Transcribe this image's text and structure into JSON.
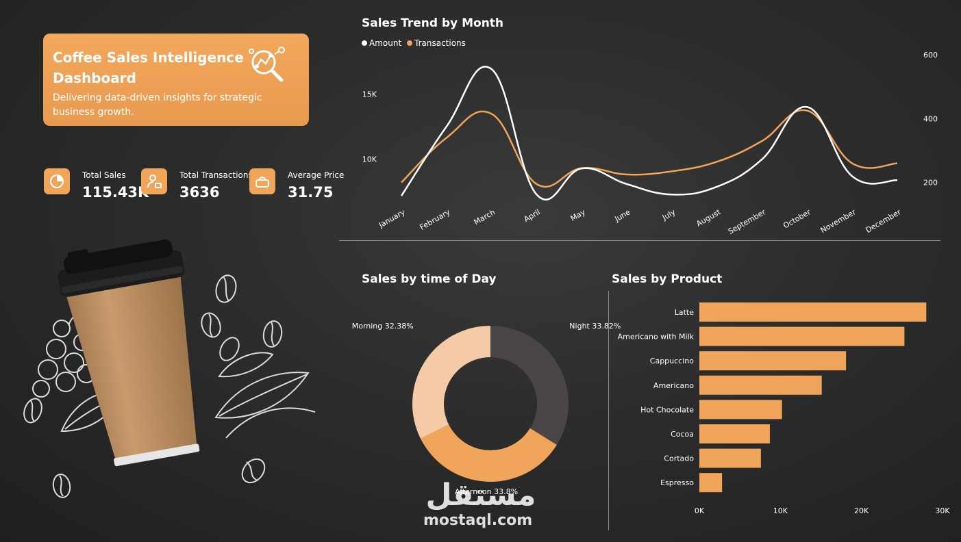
{
  "header": {
    "title": "Coffee Sales Intelligence Dashboard",
    "subtitle": "Delivering data-driven insights for strategic business growth.",
    "icon": "analytics-magnifier-icon"
  },
  "kpis": [
    {
      "label": "Total Sales",
      "value": "115.43K",
      "icon": "pie-chart-icon"
    },
    {
      "label": "Total Transactions",
      "value": "3636",
      "icon": "user-card-icon"
    },
    {
      "label": "Average Price",
      "value": "31.75",
      "icon": "basket-icon"
    }
  ],
  "colors": {
    "accent": "#F0A55A",
    "amount_line": "#FFFFFF",
    "transactions_line": "#F0A55A",
    "morning": "#F5CBA7",
    "afternoon": "#F0A55A",
    "night": "#4A4646"
  },
  "watermark": {
    "arabic": "مستقل",
    "latin": "mostaql.com"
  },
  "chart_data": [
    {
      "id": "trend",
      "type": "line",
      "title": "Sales Trend by Month",
      "legend_position": "top-left",
      "x": [
        "January",
        "February",
        "March",
        "April",
        "May",
        "June",
        "July",
        "August",
        "September",
        "October",
        "November",
        "December"
      ],
      "series": [
        {
          "name": "Amount",
          "axis": "left",
          "values": [
            7200,
            12500,
            16900,
            7300,
            9300,
            8100,
            7300,
            7900,
            10000,
            14000,
            8700,
            8400
          ]
        },
        {
          "name": "Transactions",
          "axis": "right",
          "values": [
            200,
            340,
            415,
            195,
            245,
            225,
            235,
            265,
            330,
            425,
            260,
            260
          ]
        }
      ],
      "left_ticks": [
        {
          "value": 10000,
          "label": "10K"
        },
        {
          "value": 15000,
          "label": "15K"
        }
      ],
      "left_range": [
        7000,
        18000
      ],
      "right_ticks": [
        {
          "value": 200,
          "label": "200"
        },
        {
          "value": 400,
          "label": "400"
        },
        {
          "value": 600,
          "label": "600"
        }
      ],
      "right_range": [
        150,
        600
      ],
      "grid": false
    },
    {
      "id": "timeofday",
      "type": "pie",
      "donut": true,
      "title": "Sales by time of Day",
      "slices": [
        {
          "label": "Night",
          "value": 33.82,
          "display": "Night 33.82%",
          "color": "#4A4646"
        },
        {
          "label": "Afternoon",
          "value": 33.8,
          "display": "Afternoon 33.8%",
          "color": "#F0A55A"
        },
        {
          "label": "Morning",
          "value": 32.38,
          "display": "Morning 32.38%",
          "color": "#F5CBA7"
        }
      ]
    },
    {
      "id": "products",
      "type": "bar",
      "orientation": "horizontal",
      "title": "Sales by Product",
      "categories": [
        "Latte",
        "Americano with Milk",
        "Cappuccino",
        "Americano",
        "Hot Chocolate",
        "Cocoa",
        "Cortado",
        "Espresso"
      ],
      "values": [
        28000,
        25300,
        18100,
        15100,
        10200,
        8700,
        7600,
        2800
      ],
      "xlim": [
        0,
        30000
      ],
      "ticks": [
        {
          "value": 0,
          "label": "0K"
        },
        {
          "value": 10000,
          "label": "10K"
        },
        {
          "value": 20000,
          "label": "20K"
        },
        {
          "value": 30000,
          "label": "30K"
        }
      ],
      "grid": false
    }
  ]
}
